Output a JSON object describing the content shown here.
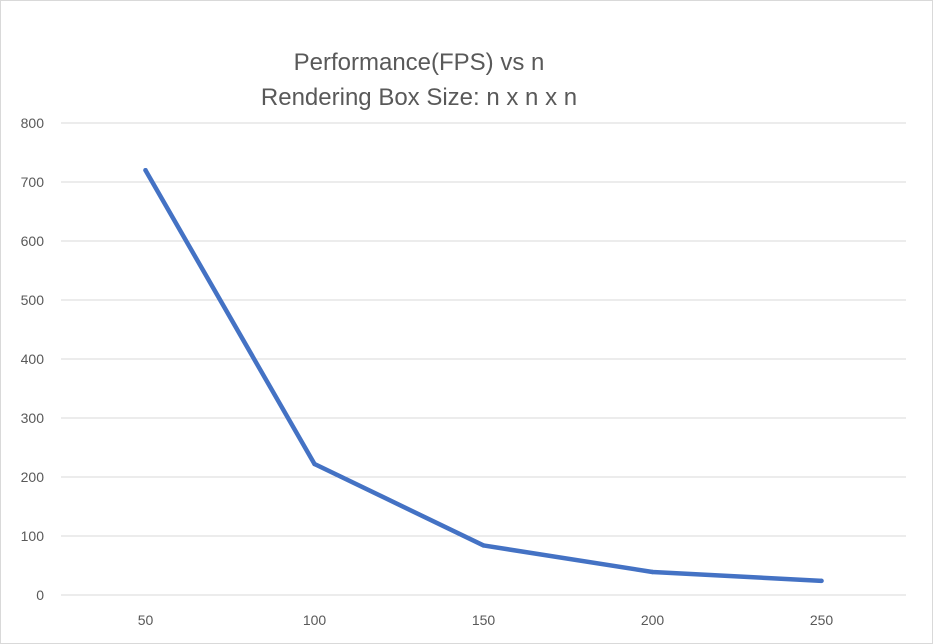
{
  "chart_data": {
    "type": "line",
    "title_lines": [
      "Performance(FPS)  vs n",
      "Rendering Box Size: n x n x n"
    ],
    "xlabel": "",
    "ylabel": "",
    "categories": [
      "50",
      "100",
      "150",
      "200",
      "250"
    ],
    "series": [
      {
        "values": [
          720,
          222,
          84,
          39,
          24
        ]
      }
    ],
    "ylim": [
      0,
      800
    ],
    "yticks": [
      "0",
      "100",
      "200",
      "300",
      "400",
      "500",
      "600",
      "700",
      "800"
    ],
    "grid": true,
    "legend": "none",
    "series_color": "#4472c4"
  }
}
